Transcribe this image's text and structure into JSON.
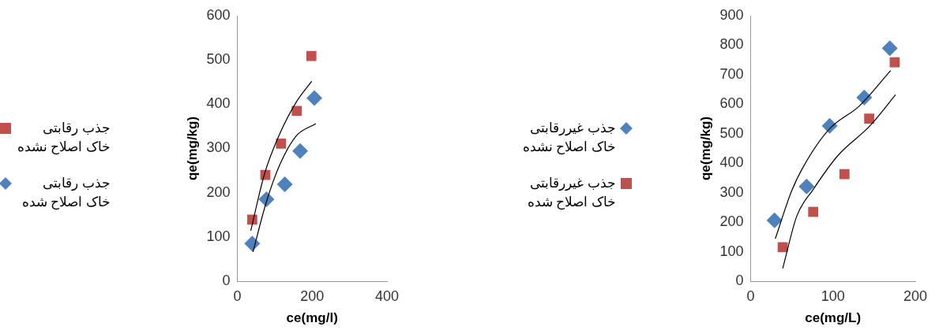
{
  "chart_data": [
    {
      "type": "scatter",
      "xlabel": "ce(mg/l)",
      "ylabel": "qe(mg/kg)",
      "xlim": [
        0,
        400
      ],
      "xticks": [
        0,
        200,
        400
      ],
      "ylim": [
        0,
        600
      ],
      "yticks": [
        0,
        100,
        200,
        300,
        400,
        500,
        600
      ],
      "grid": false,
      "legend": "left",
      "series": [
        {
          "name": "جذب رقابتی خاک اصلاح نشده",
          "color": "#c0504d",
          "marker": "square",
          "x": [
            40,
            75,
            117,
            159,
            198
          ],
          "values": [
            139,
            240,
            311,
            385,
            509
          ]
        },
        {
          "name": "جذب رقابتی خاک اصلاح شده",
          "color": "#4f81bd",
          "marker": "diamond",
          "x": [
            40,
            78,
            127,
            168,
            206
          ],
          "values": [
            85,
            185,
            219,
            294,
            414
          ]
        },
        {
          "type": "line",
          "color": "#000000",
          "marker": "none",
          "x": [
            36,
            73,
            113,
            157,
            199
          ],
          "values": [
            114,
            243,
            332,
            404,
            452
          ]
        },
        {
          "type": "line",
          "color": "#000000",
          "marker": "none",
          "x": [
            42,
            76,
            113,
            157,
            210
          ],
          "values": [
            66,
            174,
            262,
            328,
            356
          ]
        }
      ]
    },
    {
      "type": "scatter",
      "xlabel": "ce(mg/L)",
      "ylabel": "qe(mg/kg)",
      "xlim": [
        0,
        200
      ],
      "xticks": [
        0,
        100,
        200
      ],
      "ylim": [
        0,
        900
      ],
      "yticks": [
        0,
        100,
        200,
        300,
        400,
        500,
        600,
        700,
        800,
        900
      ],
      "grid": false,
      "legend": "left",
      "series": [
        {
          "name": "جذب غیررقابتی خاک اصلاح نشده",
          "color": "#4f81bd",
          "marker": "diamond",
          "x": [
            29,
            68,
            96,
            138,
            169
          ],
          "values": [
            206,
            321,
            527,
            623,
            790
          ]
        },
        {
          "name": "جذب غیررقابتی خاک اصلاح شده",
          "color": "#c0504d",
          "marker": "square",
          "x": [
            39,
            76,
            114,
            144,
            175
          ],
          "values": [
            115,
            235,
            363,
            551,
            742
          ]
        },
        {
          "type": "line",
          "color": "#000000",
          "marker": "none",
          "x": [
            30,
            50,
            69,
            96,
            132,
            170
          ],
          "values": [
            144,
            307,
            412,
            517,
            594,
            714
          ]
        },
        {
          "type": "line",
          "color": "#000000",
          "marker": "none",
          "x": [
            39,
            56,
            76,
            106,
            145,
            176
          ],
          "values": [
            43,
            220,
            311,
            426,
            527,
            632
          ]
        }
      ]
    }
  ]
}
